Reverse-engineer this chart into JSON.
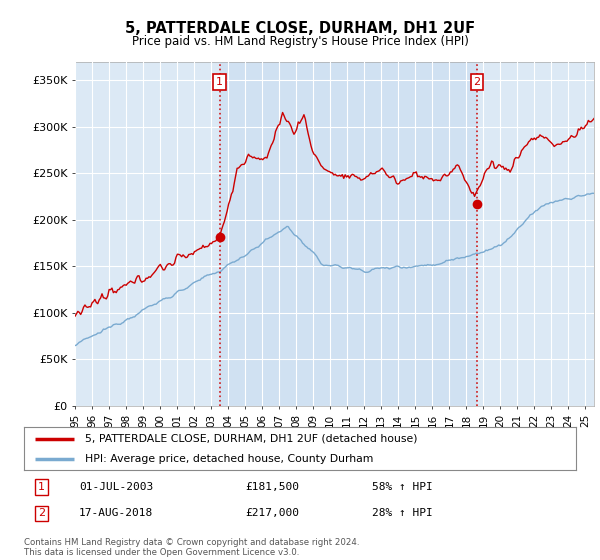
{
  "title": "5, PATTERDALE CLOSE, DURHAM, DH1 2UF",
  "subtitle": "Price paid vs. HM Land Registry's House Price Index (HPI)",
  "legend_line1": "5, PATTERDALE CLOSE, DURHAM, DH1 2UF (detached house)",
  "legend_line2": "HPI: Average price, detached house, County Durham",
  "annotation1_date": "01-JUL-2003",
  "annotation1_price": "£181,500",
  "annotation1_hpi": "58% ↑ HPI",
  "annotation2_date": "17-AUG-2018",
  "annotation2_price": "£217,000",
  "annotation2_hpi": "28% ↑ HPI",
  "footer": "Contains HM Land Registry data © Crown copyright and database right 2024.\nThis data is licensed under the Open Government Licence v3.0.",
  "bg_color": "#dce9f5",
  "shade_color": "#c8dcf0",
  "grid_color": "#ffffff",
  "red_color": "#cc0000",
  "blue_color": "#7aaad0",
  "ylim": [
    0,
    370000
  ],
  "yticks": [
    0,
    50000,
    100000,
    150000,
    200000,
    250000,
    300000,
    350000
  ],
  "ytick_labels": [
    "£0",
    "£50K",
    "£100K",
    "£150K",
    "£200K",
    "£250K",
    "£300K",
    "£350K"
  ],
  "xstart": 1995.0,
  "xend": 2025.5,
  "sale1_x": 2003.5,
  "sale1_y": 181500,
  "sale2_x": 2018.625,
  "sale2_y": 217000,
  "xtick_years": [
    1995,
    1996,
    1997,
    1998,
    1999,
    2000,
    2001,
    2002,
    2003,
    2004,
    2005,
    2006,
    2007,
    2008,
    2009,
    2010,
    2011,
    2012,
    2013,
    2014,
    2015,
    2016,
    2017,
    2018,
    2019,
    2020,
    2021,
    2022,
    2023,
    2024,
    2025
  ]
}
